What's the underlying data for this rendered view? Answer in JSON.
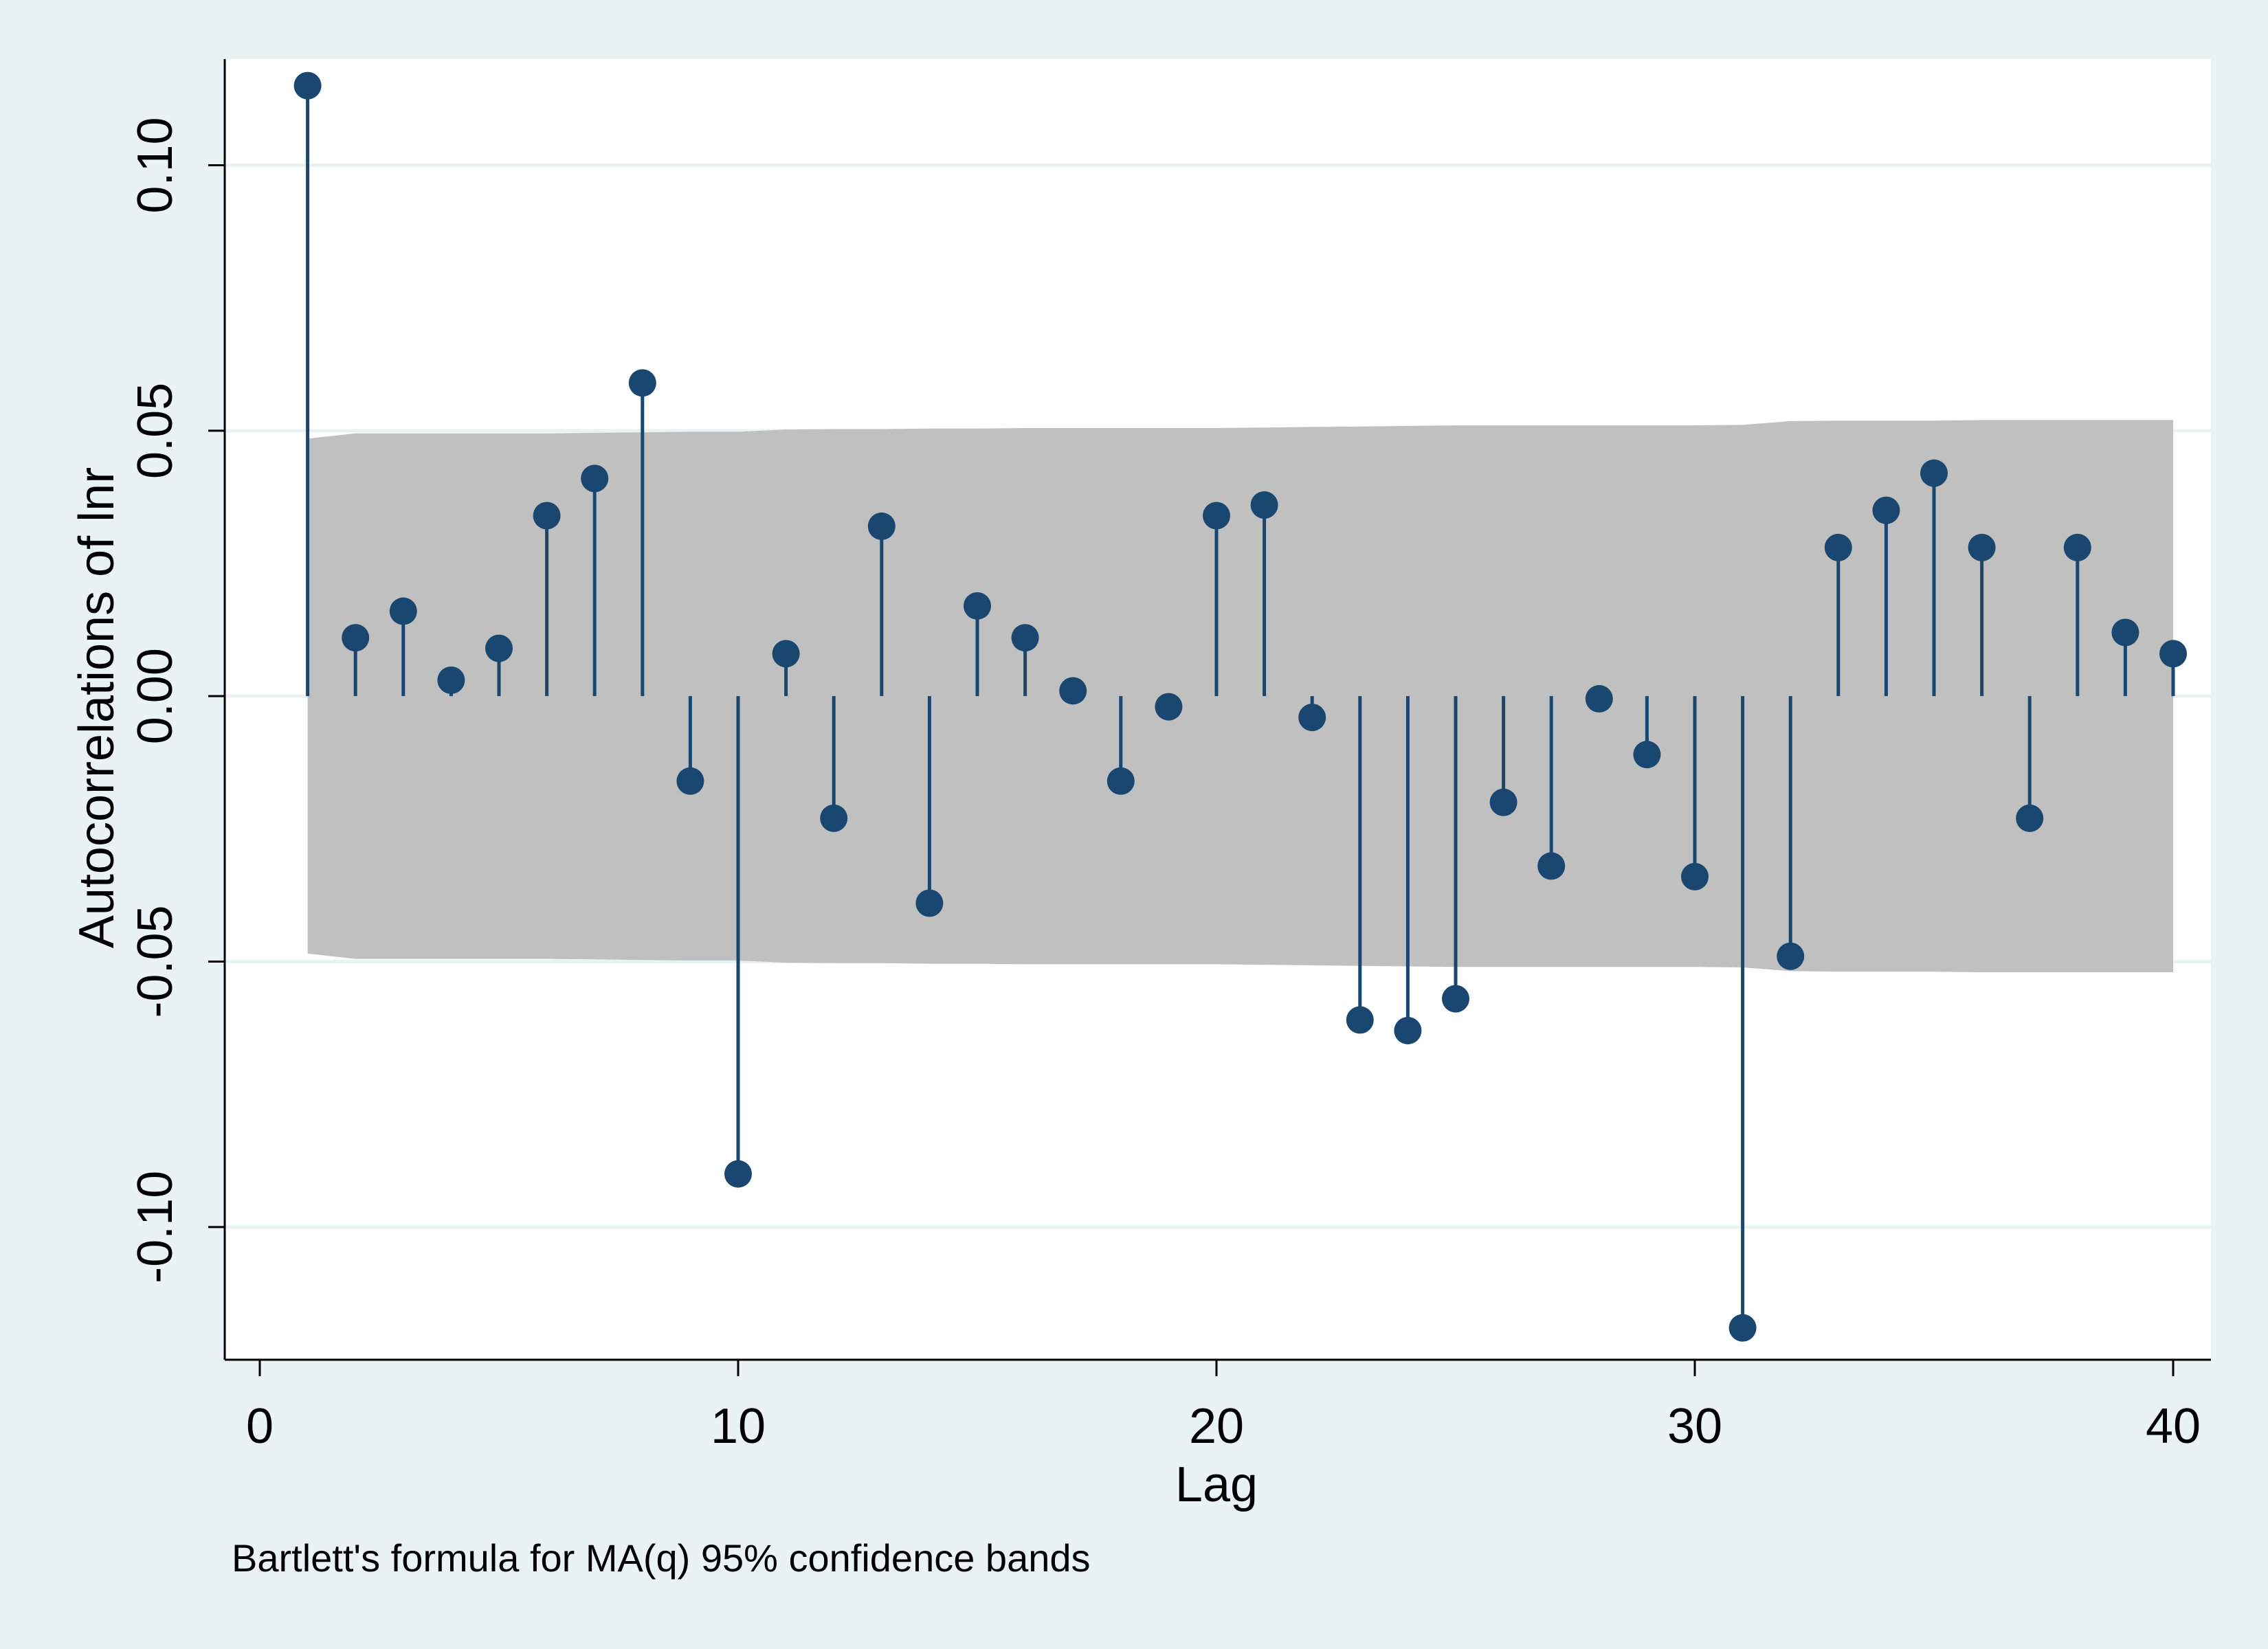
{
  "chart_data": {
    "type": "stem",
    "xlabel": "Lag",
    "ylabel": "Autocorrelations of lnr",
    "note": "Bartlett's formula for MA(q) 95% confidence bands",
    "xlim": [
      0,
      40
    ],
    "ylim": [
      -0.125,
      0.12
    ],
    "xticks": [
      0,
      10,
      20,
      30,
      40
    ],
    "xtick_labels": [
      "0",
      "10",
      "20",
      "30",
      "40"
    ],
    "yticks": [
      -0.1,
      -0.05,
      0.0,
      0.05,
      0.1
    ],
    "ytick_labels": [
      "-0.10",
      "-0.05",
      "0.00",
      "0.05",
      "0.10"
    ],
    "grid": true,
    "colors": {
      "background": "#eaf2f3",
      "plot": "#ffffff",
      "band": "#c0c0c0",
      "series": "#1a476f",
      "grid": "#eaf2f3"
    },
    "lags": [
      1,
      2,
      3,
      4,
      5,
      6,
      7,
      8,
      9,
      10,
      11,
      12,
      13,
      14,
      15,
      16,
      17,
      18,
      19,
      20,
      21,
      22,
      23,
      24,
      25,
      26,
      27,
      28,
      29,
      30,
      31,
      32,
      33,
      34,
      35,
      36,
      37,
      38,
      39,
      40
    ],
    "acf": [
      0.115,
      0.011,
      0.016,
      0.003,
      0.009,
      0.034,
      0.041,
      0.059,
      -0.016,
      -0.09,
      0.008,
      -0.023,
      0.032,
      -0.039,
      0.017,
      0.011,
      0.001,
      -0.016,
      -0.002,
      0.034,
      0.036,
      -0.004,
      -0.061,
      -0.063,
      -0.057,
      -0.02,
      -0.032,
      -0.0005,
      -0.011,
      -0.034,
      -0.119,
      -0.049,
      0.028,
      0.035,
      0.042,
      0.028,
      -0.023,
      0.028,
      0.012,
      0.008
    ],
    "band_upper": [
      0.0485,
      0.0495,
      0.0495,
      0.0495,
      0.0495,
      0.0495,
      0.0496,
      0.0497,
      0.0498,
      0.0498,
      0.0502,
      0.0503,
      0.0503,
      0.0504,
      0.0504,
      0.0505,
      0.0505,
      0.0505,
      0.0505,
      0.0505,
      0.0506,
      0.0507,
      0.0508,
      0.0509,
      0.051,
      0.051,
      0.051,
      0.051,
      0.051,
      0.051,
      0.0511,
      0.0518,
      0.0519,
      0.0519,
      0.0519,
      0.052,
      0.052,
      0.052,
      0.052,
      0.052
    ]
  }
}
